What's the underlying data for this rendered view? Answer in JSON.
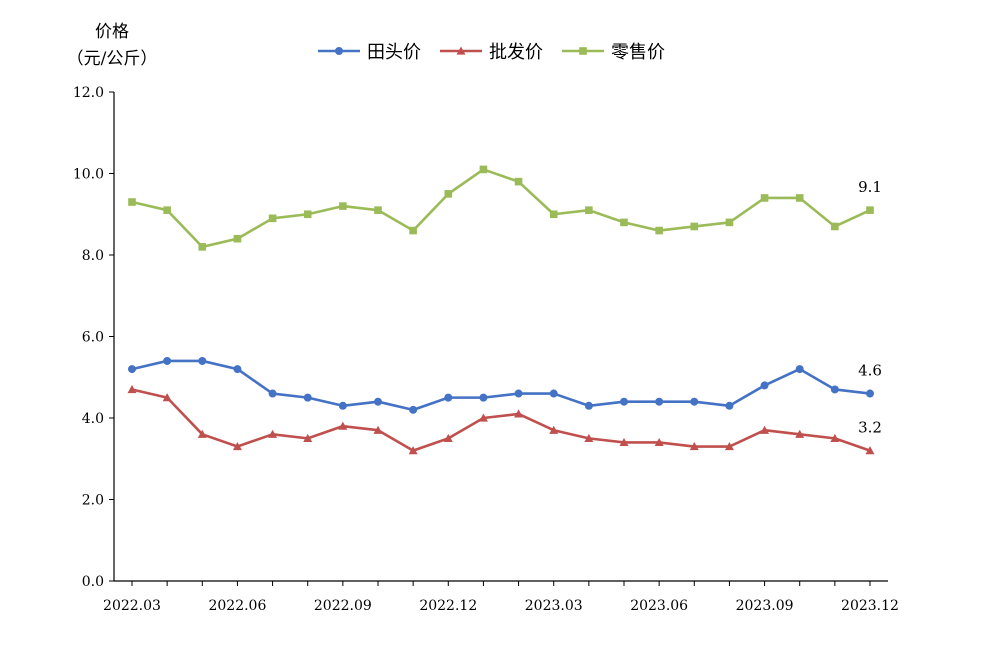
{
  "chart_data": {
    "type": "line",
    "ylabel_line1": "价格",
    "ylabel_line2": "（元/公斤）",
    "ylim": [
      0,
      12
    ],
    "yticks": [
      "0.0",
      "2.0",
      "4.0",
      "6.0",
      "8.0",
      "10.0",
      "12.0"
    ],
    "x": [
      "2022.03",
      "2022.04",
      "2022.05",
      "2022.06",
      "2022.07",
      "2022.08",
      "2022.09",
      "2022.10",
      "2022.11",
      "2022.12",
      "2023.01",
      "2023.02",
      "2023.03",
      "2023.04",
      "2023.05",
      "2023.06",
      "2023.07",
      "2023.08",
      "2023.09",
      "2023.10",
      "2023.11",
      "2023.12"
    ],
    "xtick_labels": [
      "2022.03",
      "2022.06",
      "2022.09",
      "2022.12",
      "2023.03",
      "2023.06",
      "2023.09",
      "2023.12"
    ],
    "legend_position": "top-center",
    "grid": false,
    "series": [
      {
        "name": "田头价",
        "color": "#4472C4",
        "marker": "circle",
        "values": [
          5.2,
          5.4,
          5.4,
          5.2,
          4.6,
          4.5,
          4.3,
          4.4,
          4.2,
          4.5,
          4.5,
          4.6,
          4.6,
          4.3,
          4.4,
          4.4,
          4.4,
          4.3,
          4.8,
          5.2,
          4.7,
          4.6
        ],
        "end_label": "4.6"
      },
      {
        "name": "批发价",
        "color": "#C0504D",
        "marker": "triangle",
        "values": [
          4.7,
          4.5,
          3.6,
          3.3,
          3.6,
          3.5,
          3.8,
          3.7,
          3.2,
          3.5,
          4.0,
          4.1,
          3.7,
          3.5,
          3.4,
          3.4,
          3.3,
          3.3,
          3.7,
          3.6,
          3.5,
          3.2
        ],
        "end_label": "3.2"
      },
      {
        "name": "零售价",
        "color": "#9BBB59",
        "marker": "square",
        "values": [
          9.3,
          9.1,
          8.2,
          8.4,
          8.9,
          9.0,
          9.2,
          9.1,
          8.6,
          9.5,
          10.1,
          9.8,
          9.0,
          9.1,
          8.8,
          8.6,
          8.7,
          8.8,
          9.4,
          9.4,
          8.7,
          9.1
        ],
        "end_label": "9.1"
      }
    ]
  }
}
